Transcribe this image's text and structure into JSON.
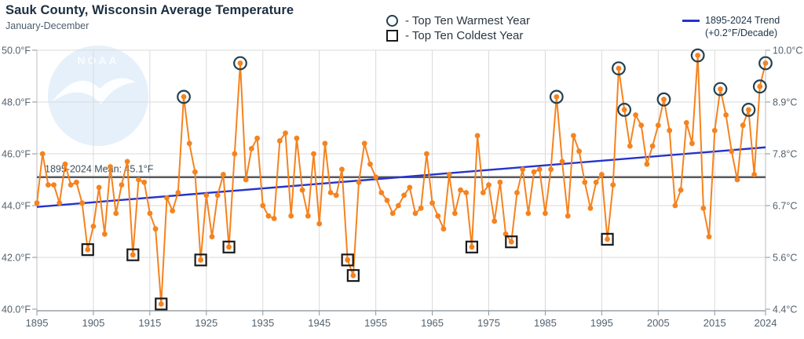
{
  "header": {
    "title": "Sauk County, Wisconsin Average Temperature",
    "subtitle": "January-December"
  },
  "legend": {
    "warmest_label": "- Top Ten Warmest Year",
    "coldest_label": "- Top Ten Coldest Year"
  },
  "watermark": {
    "text": "NOAA"
  },
  "chart_data": {
    "type": "line",
    "title": "Sauk County, Wisconsin Average Temperature",
    "subtitle": "January-December",
    "start_year": 1895,
    "end_year": 2024,
    "ylim": [
      40,
      50
    ],
    "grid": true,
    "yticks": [
      {
        "value": 40,
        "f": "40.0°F",
        "c": "4.4°C"
      },
      {
        "value": 42,
        "f": "42.0°F",
        "c": "5.6°C"
      },
      {
        "value": 44,
        "f": "44.0°F",
        "c": "6.7°C"
      },
      {
        "value": 46,
        "f": "46.0°F",
        "c": "7.8°C"
      },
      {
        "value": 48,
        "f": "48.0°F",
        "c": "8.9°C"
      },
      {
        "value": 50,
        "f": "50.0°F",
        "c": "10.0°C"
      }
    ],
    "xticks": [
      1895,
      1905,
      1915,
      1925,
      1935,
      1945,
      1955,
      1965,
      1975,
      1985,
      1995,
      2005,
      2015,
      2024
    ],
    "values": [
      44.1,
      46.0,
      44.8,
      44.8,
      44.1,
      45.6,
      44.8,
      44.9,
      44.1,
      42.3,
      43.2,
      44.7,
      42.9,
      45.5,
      43.7,
      44.8,
      45.7,
      42.1,
      45.0,
      44.9,
      43.7,
      43.1,
      40.2,
      44.3,
      43.8,
      44.5,
      48.2,
      46.4,
      45.3,
      41.9,
      44.4,
      42.8,
      44.4,
      45.2,
      42.4,
      46.0,
      49.5,
      45.0,
      46.2,
      46.6,
      44.0,
      43.6,
      43.5,
      46.5,
      46.8,
      43.6,
      46.6,
      44.6,
      43.6,
      46.0,
      43.3,
      46.4,
      44.5,
      44.4,
      45.4,
      41.9,
      41.3,
      44.9,
      46.4,
      45.6,
      45.1,
      44.5,
      44.2,
      43.7,
      44.0,
      44.4,
      44.7,
      43.7,
      43.9,
      46.0,
      44.1,
      43.6,
      43.1,
      45.2,
      43.7,
      44.6,
      44.5,
      42.4,
      46.7,
      44.5,
      44.8,
      43.4,
      44.9,
      42.9,
      42.6,
      44.5,
      45.4,
      43.7,
      45.3,
      45.4,
      43.7,
      45.4,
      48.2,
      45.7,
      43.6,
      46.7,
      46.1,
      44.9,
      43.9,
      44.9,
      45.2,
      42.7,
      44.8,
      49.3,
      47.7,
      46.3,
      47.5,
      47.1,
      45.6,
      46.3,
      47.1,
      48.1,
      46.9,
      44.0,
      44.6,
      47.2,
      46.4,
      49.8,
      43.9,
      42.8,
      46.9,
      48.5,
      47.5,
      46.1,
      45.0,
      47.1,
      47.7,
      45.2,
      48.6,
      49.5
    ],
    "top_ten_warmest_years": [
      1921,
      1931,
      1987,
      1998,
      1999,
      2006,
      2012,
      2016,
      2021,
      2023,
      2024
    ],
    "top_ten_coldest_years": [
      1904,
      1912,
      1917,
      1924,
      1929,
      1950,
      1951,
      1972,
      1979,
      1996
    ],
    "mean_value": 45.1,
    "mean_label": "1895-2024 Mean: 45.1°F",
    "trend": {
      "label_line1": "1895-2024 Trend",
      "label_line2": "(+0.2°F/Decade)",
      "start_value": 43.95,
      "end_value": 46.25
    },
    "colors": {
      "series": "#F5831F",
      "trend": "#2433CC",
      "mean": "#58595B",
      "warm_ring": "#24404F",
      "cold_square": "#1B1B1B",
      "grid": "#DADADA",
      "axis": "#9AA1A7",
      "tick_text": "#53616D",
      "watermark_blue": "#CFE4F5"
    }
  }
}
